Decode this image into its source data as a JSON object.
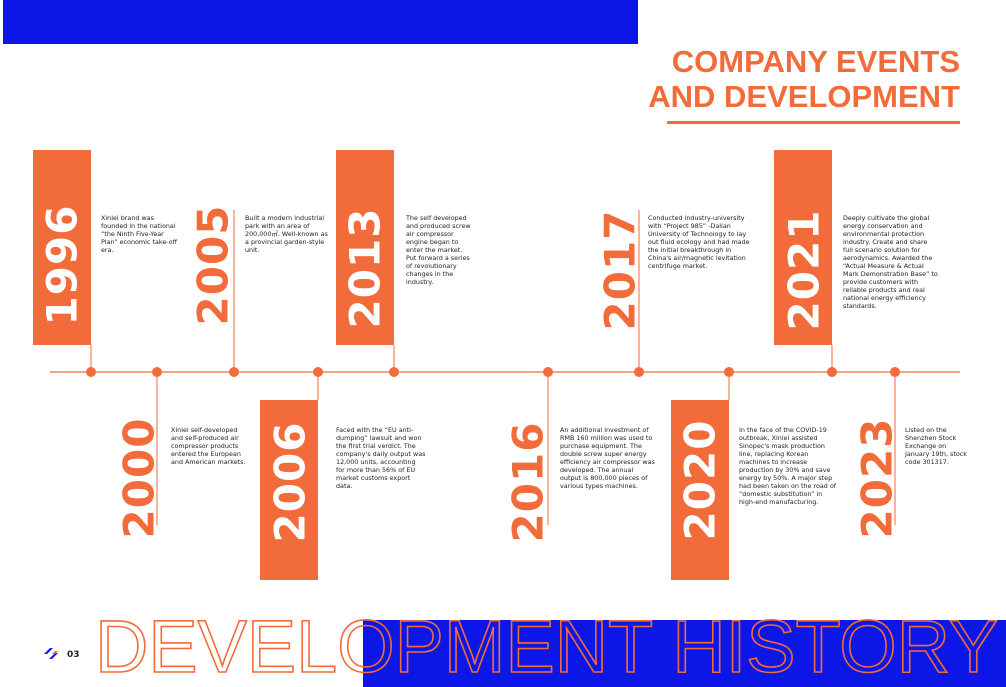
{
  "header": {
    "title_line1": "COMPANY EVENTS",
    "title_line2": "AND DEVELOPMENT"
  },
  "events": [
    {
      "year": "1996",
      "text": "Xinlei brand was founded in the national “the Ninth Five-Year Plan” economic take-off era."
    },
    {
      "year": "2000",
      "text": "Xinlei self-developed and self-produced air compressor products entered the European and American markets."
    },
    {
      "year": "2005",
      "text": "Built a modern industrial park with an area of 200,000㎡. Well-known as a provincial garden-style unit."
    },
    {
      "year": "2006",
      "text": "Faced with the “EU anti-dumping” lawsuit and won the first trial verdict. The company's daily output was 12,000 units, accounting for more than 56% of EU market customs export data."
    },
    {
      "year": "2013",
      "text": "The self developed and produced screw air compressor engine began to enter the market. Put forward a series of revolutionary changes in the industry."
    },
    {
      "year": "2016",
      "text": "An additional investment of RMB 160 million was used to purchase equipment. The double screw super energy efficiency air compressor was developed. The annual output is 800,000 pieces of various types machines."
    },
    {
      "year": "2017",
      "text": "Conducted industry-university with “Project 985” -Dalian University of Technology to lay out fluid ecology and had made the initial breakthrough in China's air/magnetic levitation centrifuge market."
    },
    {
      "year": "2020",
      "text": "In the face of the COVID-19 outbreak, Xinlei assisted Sinopec's mask production line, replacing Korean machines to increase production by 30% and save energy by 50%. A major step had been taken on the road of “domestic substitution” in high-end manufacturing."
    },
    {
      "year": "2021",
      "text": "Deeply cultivate the global energy conservation and environmental protection industry. Create and share full scenario solution for aerodynamics. Awarded the “Actual Measure & Actual Mark Demonstration Base” to provide customers with reliable products and real national energy efficiency standards."
    },
    {
      "year": "2023",
      "text": "Listed on the Shenzhen Stock Exchange on January 19th, stock code 301317."
    }
  ],
  "footer": {
    "banner": "DEVELOPMENT HISTORY",
    "page_number": "03"
  }
}
